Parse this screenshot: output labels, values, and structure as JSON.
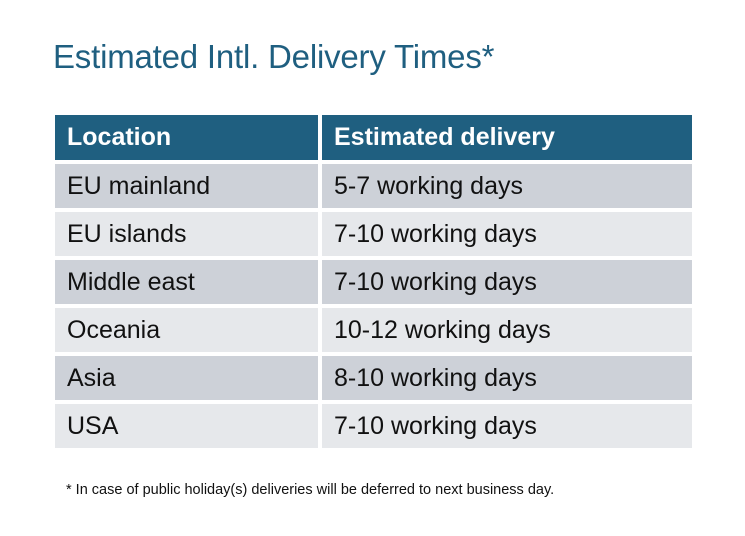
{
  "title": "Estimated Intl. Delivery Times*",
  "table": {
    "headers": [
      "Location",
      "Estimated delivery"
    ],
    "rows": [
      [
        "EU mainland",
        "5-7 working days"
      ],
      [
        "EU islands",
        "7-10 working days"
      ],
      [
        "Middle east",
        "7-10 working days"
      ],
      [
        "Oceania",
        "10-12 working days"
      ],
      [
        "Asia",
        "8-10 working days"
      ],
      [
        "USA",
        "7-10 working days"
      ]
    ]
  },
  "footnote": "* In case of public holiday(s) deliveries will be deferred to next business day.",
  "colors": {
    "header": "#1F5F80",
    "row_dark": "#CDD1D8",
    "row_light": "#E6E8EB"
  }
}
